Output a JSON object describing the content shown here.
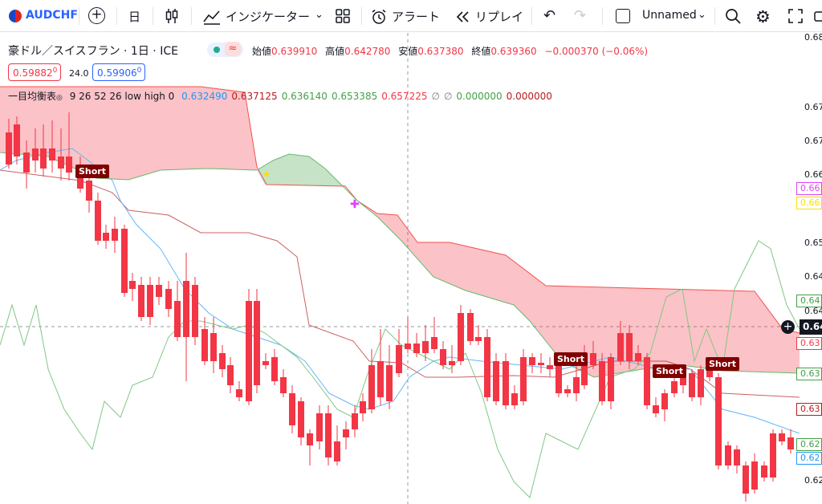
{
  "toolbar": {
    "symbol": "AUDCHF",
    "interval": "日",
    "indicators_label": "インジケーター",
    "alert_label": "アラート",
    "replay_label": "リプレイ",
    "layout_name": "Unnamed"
  },
  "legend": {
    "title": "豪ドル／スイスフラン · 1日 · ICE",
    "open_label": "始値",
    "open": "0.639910",
    "high_label": "高値",
    "high": "0.642780",
    "low_label": "安値",
    "low": "0.637380",
    "close_label": "終値",
    "close": "0.639360",
    "change": "−0.000370 (−0.06%)",
    "sell": "0.59882",
    "sell_sup": "0",
    "spread": "24.0",
    "buy": "0.59906",
    "buy_sup": "0",
    "indicator_name": "一目均衡表",
    "indicator_params": "9 26 52 26 low high 0",
    "indicator_values": [
      "0.632490",
      "0.637125",
      "0.636140",
      "0.653385",
      "0.657225",
      "∅",
      "∅",
      "0.000000",
      "0.000000"
    ],
    "indicator_colors": [
      "#2196f3",
      "#b71c1c",
      "#43a047",
      "#43a047",
      "#f23645",
      "#787b86",
      "#787b86",
      "#43a047",
      "#b71c1c"
    ]
  },
  "short_label": "Short",
  "axis": {
    "ticks": [
      "0.68",
      "0.67",
      "0.67",
      "0.66",
      "0.65",
      "0.64",
      "0.64",
      "0.63",
      "0.62"
    ],
    "labels": [
      "0.66",
      "0.66",
      "0.64",
      "0.64",
      "0.63",
      "0.63",
      "0.63",
      "0.62",
      "0.62"
    ],
    "label_colors": [
      "#e040fb",
      "#f5e100",
      "#43a047",
      "#131722",
      "#f23645",
      "#43a047",
      "#b71c1c",
      "#43a047",
      "#2196f3"
    ],
    "current_price": "0.64"
  },
  "colors": {
    "up": "#089981",
    "down": "#f23645",
    "accent": "#2962ff"
  }
}
